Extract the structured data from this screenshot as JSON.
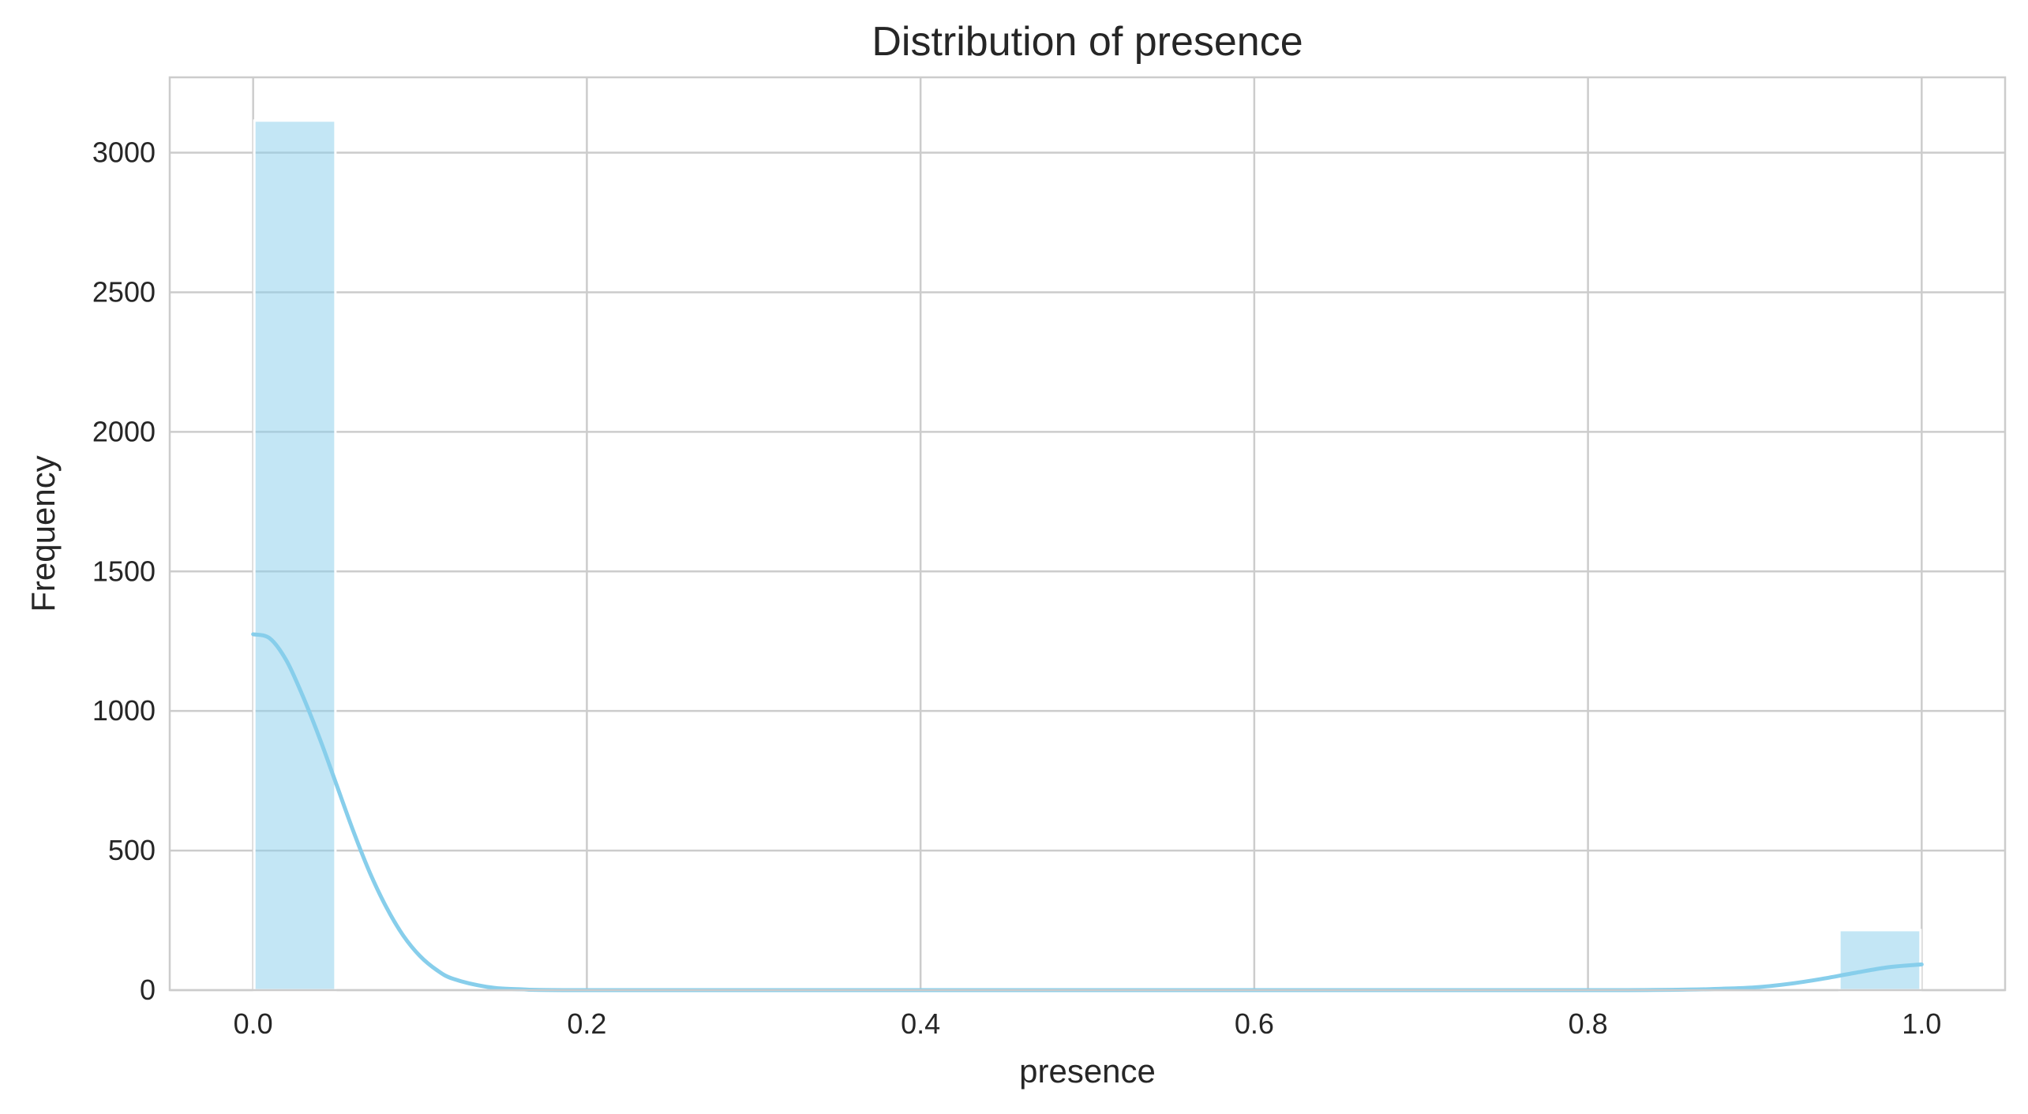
{
  "chart_data": {
    "type": "bar",
    "title": "Distribution of presence",
    "xlabel": "presence",
    "ylabel": "Frequency",
    "xlim": [
      -0.05,
      1.05
    ],
    "ylim": [
      0,
      3270
    ],
    "xticks": [
      0.0,
      0.2,
      0.4,
      0.6,
      0.8,
      1.0
    ],
    "xtick_labels": [
      "0.0",
      "0.2",
      "0.4",
      "0.6",
      "0.8",
      "1.0"
    ],
    "yticks": [
      0,
      500,
      1000,
      1500,
      2000,
      2500,
      3000
    ],
    "ytick_labels": [
      "0",
      "500",
      "1000",
      "1500",
      "2000",
      "2500",
      "3000"
    ],
    "grid": true,
    "bar_color": "#87ceeb",
    "kde_color": "#87ceeb",
    "bins": [
      {
        "x0": 0.0,
        "x1": 0.05,
        "count": 3115
      },
      {
        "x0": 0.95,
        "x1": 1.0,
        "count": 215
      }
    ],
    "kde": {
      "x": [
        0.0,
        0.01,
        0.02,
        0.03,
        0.04,
        0.05,
        0.06,
        0.07,
        0.08,
        0.09,
        0.1,
        0.11,
        0.12,
        0.14,
        0.16,
        0.2,
        0.4,
        0.6,
        0.8,
        0.86,
        0.88,
        0.9,
        0.92,
        0.94,
        0.96,
        0.98,
        1.0
      ],
      "y": [
        1275,
        1260,
        1180,
        1050,
        900,
        735,
        570,
        420,
        295,
        195,
        122,
        72,
        40,
        12,
        3,
        0,
        0,
        0,
        0,
        2,
        5,
        10,
        22,
        40,
        62,
        82,
        92
      ]
    }
  }
}
